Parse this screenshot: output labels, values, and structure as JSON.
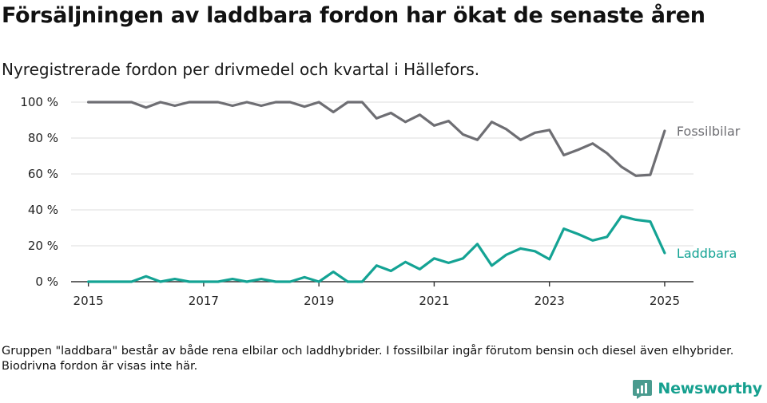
{
  "title": "Försäljningen av laddbara fordon har ökat de senaste åren",
  "subtitle": "Nyregistrerade fordon per drivmedel och kvartal i Hällefors.",
  "footnote": "Gruppen \"laddbara\" består av både rena elbilar och laddhybrider. I fossilbilar ingår förutom bensin och diesel även elhybrider. Biodrivna fordon är visas inte här.",
  "brand": {
    "name": "Newsworthy",
    "icon": "newsworthy-logo-icon",
    "color": "#16a08f"
  },
  "chart_data": {
    "type": "line",
    "title": "Försäljningen av laddbara fordon har ökat de senaste åren",
    "subtitle": "Nyregistrerade fordon per drivmedel och kvartal i Hällefors.",
    "xlabel": "",
    "ylabel": "",
    "x_unit": "year (quarterly points)",
    "xlim": [
      2014.7,
      2025.5
    ],
    "ylim": [
      0,
      100
    ],
    "x_ticks": [
      2015,
      2017,
      2019,
      2021,
      2023,
      2025
    ],
    "x_tick_labels": [
      "2015",
      "2017",
      "2019",
      "2021",
      "2023",
      "2025"
    ],
    "y_ticks": [
      0,
      20,
      40,
      60,
      80,
      100
    ],
    "y_tick_labels": [
      "0 %",
      "20 %",
      "40 %",
      "60 %",
      "80 %",
      "100 %"
    ],
    "grid": "horizontal",
    "legend": "direct labels at right end of lines",
    "x": [
      2015.0,
      2015.25,
      2015.5,
      2015.75,
      2016.0,
      2016.25,
      2016.5,
      2016.75,
      2017.0,
      2017.25,
      2017.5,
      2017.75,
      2018.0,
      2018.25,
      2018.5,
      2018.75,
      2019.0,
      2019.25,
      2019.5,
      2019.75,
      2020.0,
      2020.25,
      2020.5,
      2020.75,
      2021.0,
      2021.25,
      2021.5,
      2021.75,
      2022.0,
      2022.25,
      2022.5,
      2022.75,
      2023.0,
      2023.25,
      2023.5,
      2023.75,
      2024.0,
      2024.25,
      2024.5,
      2024.75,
      2025.0
    ],
    "series": [
      {
        "name": "Fossilbilar",
        "color": "#6e6e73",
        "values": [
          100,
          100,
          100,
          100,
          97,
          100,
          98,
          100,
          100,
          100,
          98,
          100,
          98,
          100,
          100,
          97.5,
          100,
          94.5,
          100,
          100,
          91,
          94,
          89,
          93,
          87,
          89.5,
          82,
          79,
          89,
          85,
          79,
          83,
          84.5,
          70.5,
          73.5,
          77,
          71.5,
          64,
          59,
          59.5,
          84
        ]
      },
      {
        "name": "Laddbara",
        "color": "#14a394",
        "values": [
          0,
          0,
          0,
          0,
          3,
          0,
          1.5,
          0,
          0,
          0,
          1.5,
          0,
          1.5,
          0,
          0,
          2.5,
          0,
          5.5,
          0,
          0,
          9,
          6,
          11,
          7,
          13,
          10.5,
          13,
          21,
          9,
          15,
          18.5,
          17,
          12.5,
          29.5,
          26.5,
          23,
          25,
          36.5,
          34.5,
          33.5,
          16
        ]
      }
    ]
  }
}
